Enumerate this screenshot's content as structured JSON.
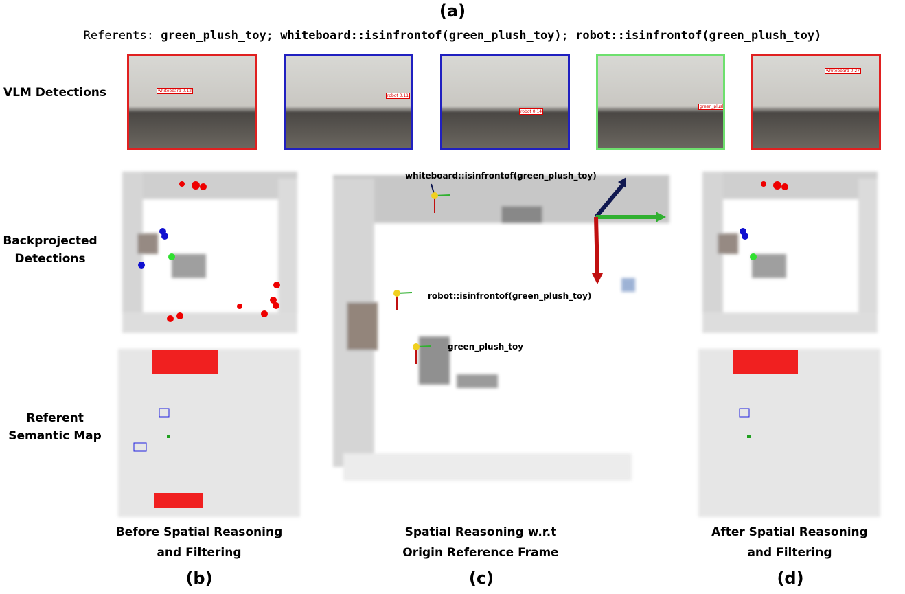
{
  "figure": {
    "panel_labels": {
      "a": "(a)",
      "b": "(b)",
      "c": "(c)",
      "d": "(d)"
    },
    "referents": {
      "label": "Referents:",
      "separator": ";",
      "items": [
        "green_plush_toy",
        "whiteboard::isinfrontof(green_plush_toy)",
        "robot::isinfrontof(green_plush_toy)"
      ]
    },
    "row_labels": [
      "VLM Detections",
      "Backprojected Detections",
      "Referent Semantic Map"
    ],
    "detections": [
      {
        "label": "whiteboard 0.12",
        "color": "#e02020"
      },
      {
        "label": "robot 0.11",
        "color": "#2020c0"
      },
      {
        "label": "robot 0.14",
        "color": "#2020c0"
      },
      {
        "label": "green_plush_toy",
        "color": "#6ee06e"
      },
      {
        "label": "whiteboard 0.27",
        "color": "#e02020"
      }
    ],
    "annotations": [
      "whiteboard::isinfrontof(green_plush_toy)",
      "robot::isinfrontof(green_plush_toy)",
      "green_plush_toy"
    ],
    "captions": [
      "Before Spatial Reasoning and Filtering",
      "Spatial Reasoning w.r.t Origin Reference Frame",
      "After Spatial Reasoning and Filtering"
    ]
  }
}
